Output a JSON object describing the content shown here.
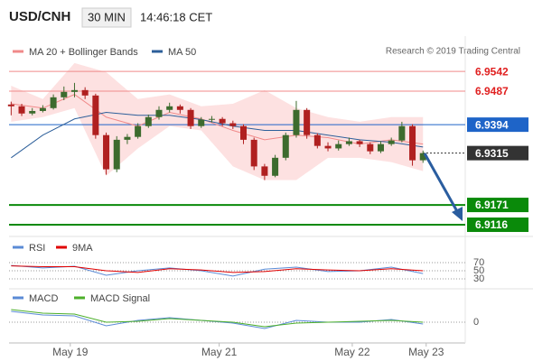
{
  "chart_data": {
    "type": "candlestick",
    "title": "USD/CNH",
    "timeframe": "30 MIN",
    "time": "14:46:18 CET",
    "copyright": "Research © 2019 Trading Central",
    "xlim": [
      -0.2,
      43
    ],
    "xticks": [
      {
        "value": 5.6,
        "label": "May 19"
      },
      {
        "value": 19.7,
        "label": "May 21"
      },
      {
        "value": 32.3,
        "label": "May 22"
      },
      {
        "value": 39.3,
        "label": "May 23"
      }
    ],
    "ylim": [
      6.9101,
      6.964
    ],
    "up_color": "#3d6b2e",
    "down_color": "#b02020",
    "candles": [
      [
        6.945,
        6.9458,
        6.942,
        6.9445
      ],
      [
        6.9445,
        6.9452,
        6.9418,
        6.9425
      ],
      [
        6.9425,
        6.944,
        6.942,
        6.9432
      ],
      [
        6.9432,
        6.9448,
        6.9428,
        6.944
      ],
      [
        6.944,
        6.9478,
        6.9436,
        6.947
      ],
      [
        6.947,
        6.95,
        6.9462,
        6.9485
      ],
      [
        6.9485,
        6.951,
        6.947,
        6.949
      ],
      [
        6.949,
        6.9498,
        6.9465,
        6.9475
      ],
      [
        6.9475,
        6.948,
        6.9355,
        6.9365
      ],
      [
        6.9365,
        6.9372,
        6.9255,
        6.927
      ],
      [
        6.927,
        6.9362,
        6.9262,
        6.9352
      ],
      [
        6.9352,
        6.9368,
        6.934,
        6.936
      ],
      [
        6.936,
        6.9398,
        6.9355,
        6.939
      ],
      [
        6.939,
        6.9422,
        6.9385,
        6.9415
      ],
      [
        6.9415,
        6.9445,
        6.9408,
        6.9435
      ],
      [
        6.9435,
        6.9455,
        6.9428,
        6.9445
      ],
      [
        6.9445,
        6.945,
        6.9425,
        6.9435
      ],
      [
        6.9435,
        6.944,
        6.9382,
        6.939
      ],
      [
        6.939,
        6.9415,
        6.9385,
        6.9408
      ],
      [
        6.9408,
        6.9418,
        6.94,
        6.941
      ],
      [
        6.941,
        6.9415,
        6.939,
        6.9398
      ],
      [
        6.9398,
        6.9405,
        6.9382,
        6.939
      ],
      [
        6.939,
        6.9395,
        6.934,
        6.9352
      ],
      [
        6.9352,
        6.9358,
        6.9268,
        6.9278
      ],
      [
        6.9278,
        6.9285,
        6.924,
        6.9252
      ],
      [
        6.9252,
        6.931,
        6.9248,
        6.9302
      ],
      [
        6.9302,
        6.9372,
        6.9295,
        6.9365
      ],
      [
        6.9365,
        6.946,
        6.9358,
        6.9435
      ],
      [
        6.9435,
        6.944,
        6.9355,
        6.9365
      ],
      [
        6.9365,
        6.937,
        6.9328,
        6.9335
      ],
      [
        6.9335,
        6.9345,
        6.932,
        6.9328
      ],
      [
        6.9328,
        6.935,
        6.9322,
        6.934
      ],
      [
        6.934,
        6.9358,
        6.9335,
        6.9348
      ],
      [
        6.9348,
        6.9352,
        6.9332,
        6.934
      ],
      [
        6.934,
        6.9345,
        6.9312,
        6.932
      ],
      [
        6.932,
        6.9348,
        6.9315,
        6.934
      ],
      [
        6.934,
        6.9358,
        6.9335,
        6.935
      ],
      [
        6.935,
        6.9402,
        6.9345,
        6.939
      ],
      [
        6.939,
        6.9395,
        6.928,
        6.9295
      ],
      [
        6.9295,
        6.9322,
        6.9288,
        6.9315
      ]
    ],
    "band_index": [
      0,
      3,
      6,
      9,
      12,
      15,
      18,
      21,
      24,
      27,
      30,
      33,
      36,
      39
    ],
    "band_color": "#fde1e1",
    "upper_band": [
      6.9502,
      6.9465,
      6.9565,
      6.954,
      6.9465,
      6.9478,
      6.9445,
      6.9452,
      6.949,
      6.944,
      6.9415,
      6.9402,
      6.9415,
      6.9415
    ],
    "lower_band": [
      6.9402,
      6.9415,
      6.944,
      6.9252,
      6.9328,
      6.939,
      6.9378,
      6.9278,
      6.924,
      6.924,
      6.9302,
      6.9302,
      6.929,
      6.9265
    ],
    "series": [
      {
        "name": "MA 20 + Bollinger Bands",
        "color": "#f08a8a",
        "values": [
          6.9452,
          6.944,
          6.9478,
          6.9415,
          6.939,
          6.9428,
          6.941,
          6.9378,
          6.9352,
          6.9365,
          6.9358,
          6.934,
          6.9352,
          6.934
        ]
      },
      {
        "name": "MA 50",
        "color": "#2d5f9a",
        "values": [
          6.9302,
          6.9365,
          6.941,
          6.9428,
          6.942,
          6.942,
          6.9408,
          6.939,
          6.9378,
          6.9378,
          6.9365,
          6.9352,
          6.9345,
          6.9332
        ]
      }
    ],
    "levels": [
      {
        "value": 6.9542,
        "color": "#f08a8a",
        "text_color": "#e02020",
        "boxed": false
      },
      {
        "value": 6.9487,
        "color": "#f08a8a",
        "text_color": "#e02020",
        "boxed": false
      },
      {
        "value": 6.9394,
        "color": "#1e64c8",
        "text_color": "#ffffff",
        "boxed": true
      },
      {
        "value": 6.9315,
        "color": "#333333",
        "text_color": "#ffffff",
        "boxed": true,
        "dotted": true
      },
      {
        "value": 6.9171,
        "color": "#0a8a0a",
        "text_color": "#ffffff",
        "boxed": true
      },
      {
        "value": 6.9116,
        "color": "#0a8a0a",
        "text_color": "#ffffff",
        "boxed": true
      }
    ],
    "rsi": {
      "ylim": [
        5.6,
        87.8
      ],
      "yticks": [
        70,
        50,
        30
      ],
      "series": [
        {
          "name": "RSI",
          "color": "#5b8bd6",
          "values": [
            63,
            57,
            61,
            39,
            50,
            57,
            50,
            37,
            54,
            59,
            48,
            50,
            59,
            43
          ]
        },
        {
          "name": "9MA",
          "color": "#e00000",
          "values": [
            62,
            60,
            60,
            50,
            46,
            55,
            52,
            46,
            48,
            55,
            52,
            50,
            55,
            50
          ]
        }
      ]
    },
    "macd": {
      "ylim": [
        -0.0015,
        0.0022
      ],
      "yticks": [
        0
      ],
      "series": [
        {
          "name": "MACD",
          "color": "#5b8bd6",
          "values": [
            0.0012,
            0.0008,
            0.0007,
            -0.0004,
            0.0002,
            0.0005,
            0.0002,
            -0.0001,
            -0.0007,
            0.0002,
            0,
            0,
            0.0003,
            -0.0002
          ]
        },
        {
          "name": "MACD Signal",
          "color": "#4caf2a",
          "values": [
            0.0014,
            0.001,
            0.0009,
            0,
            0.0001,
            0.0004,
            0.0002,
            0,
            -0.0005,
            -0.0001,
            0,
            0.0001,
            0.0002,
            0
          ]
        }
      ]
    }
  }
}
